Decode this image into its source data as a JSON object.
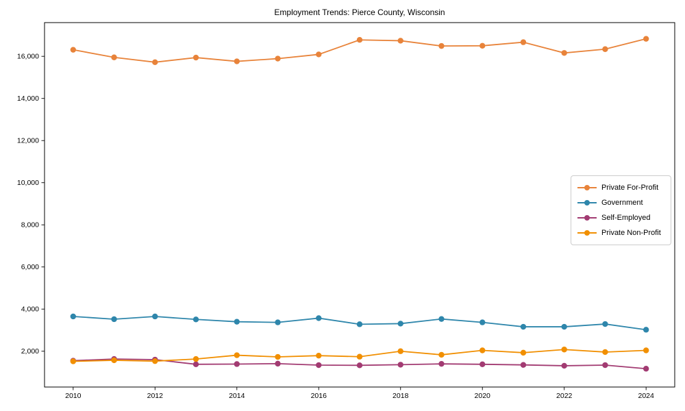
{
  "title": "Employment Trends: Pierce County, Wisconsin",
  "chart_data": {
    "type": "line",
    "x": [
      2010,
      2011,
      2012,
      2013,
      2014,
      2015,
      2016,
      2017,
      2018,
      2019,
      2020,
      2021,
      2022,
      2023,
      2024
    ],
    "series": [
      {
        "name": "Private For-Profit",
        "color": "#E8833A",
        "values": [
          16310,
          15950,
          15720,
          15940,
          15760,
          15890,
          16090,
          16780,
          16740,
          16490,
          16500,
          16670,
          16160,
          16340,
          16830
        ]
      },
      {
        "name": "Government",
        "color": "#2E86AB",
        "values": [
          3650,
          3520,
          3650,
          3510,
          3400,
          3370,
          3570,
          3280,
          3310,
          3530,
          3370,
          3160,
          3160,
          3290,
          3020
        ]
      },
      {
        "name": "Self-Employed",
        "color": "#A23B72",
        "values": [
          1550,
          1630,
          1600,
          1380,
          1390,
          1410,
          1340,
          1330,
          1360,
          1400,
          1380,
          1350,
          1310,
          1340,
          1170
        ]
      },
      {
        "name": "Private Non-Profit",
        "color": "#F18F01",
        "values": [
          1520,
          1570,
          1530,
          1630,
          1810,
          1730,
          1790,
          1740,
          2000,
          1830,
          2040,
          1930,
          2080,
          1960,
          2040
        ]
      }
    ],
    "title": "Employment Trends: Pierce County, Wisconsin",
    "xlabel": "",
    "ylabel": "",
    "x_ticks": [
      2010,
      2012,
      2014,
      2016,
      2018,
      2020,
      2022,
      2024
    ],
    "y_ticks": [
      2000,
      4000,
      6000,
      8000,
      10000,
      12000,
      14000,
      16000
    ],
    "y_tick_labels": [
      "2,000",
      "4,000",
      "6,000",
      "8,000",
      "10,000",
      "12,000",
      "14,000",
      "16,000"
    ],
    "xlim": [
      2009.3,
      2024.7
    ],
    "ylim": [
      300,
      17600
    ],
    "grid": false,
    "legend_position": "center-right"
  },
  "style": {
    "axis_color": "#000000",
    "background": "#ffffff",
    "legend_border": "#cccccc"
  }
}
